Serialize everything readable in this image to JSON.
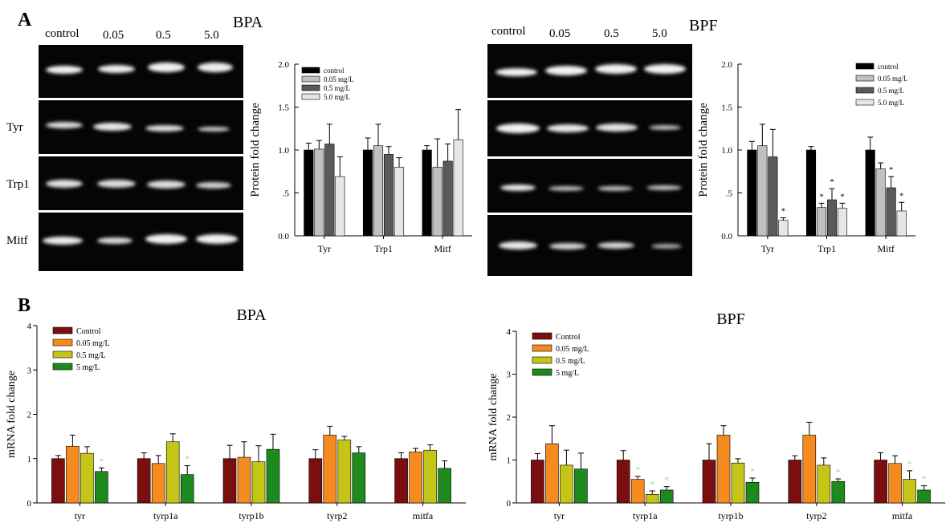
{
  "panel_labels": [
    "A",
    "B"
  ],
  "blots": [
    {
      "title": "BPA",
      "lanes": [
        "control",
        "0.05",
        "0.5",
        "5.0"
      ],
      "rows": [
        "",
        "Tyr",
        "Trp1",
        "Mitf"
      ]
    },
    {
      "title": "BPF",
      "lanes": [
        "control",
        "0.05",
        "0.5",
        "5.0"
      ],
      "rows": [
        "",
        "",
        "",
        ""
      ]
    }
  ],
  "chart_data": [
    {
      "type": "bar",
      "panel": "A",
      "title": "",
      "xlabel": "",
      "ylabel": "Protein fold change",
      "ylim": [
        0,
        2
      ],
      "yticks": [
        "0.0",
        ".5",
        "1.0",
        "1.5",
        "2.0"
      ],
      "categories": [
        "Tyr",
        "Trp1",
        "Mitf"
      ],
      "legend_position": "top-left",
      "series": [
        {
          "name": "control",
          "color": "#000000",
          "values": [
            1.0,
            1.0,
            1.0
          ],
          "errors": [
            0.08,
            0.14,
            0.05
          ]
        },
        {
          "name": "0.05 mg/L",
          "color": "#c0c0c0",
          "values": [
            1.01,
            1.05,
            0.8
          ],
          "errors": [
            0.1,
            0.25,
            0.33
          ]
        },
        {
          "name": "0.5 mg/L",
          "color": "#5a5a5a",
          "values": [
            1.07,
            0.95,
            0.87
          ],
          "errors": [
            0.23,
            0.09,
            0.2
          ]
        },
        {
          "name": "5.0 mg/L",
          "color": "#e6e6e6",
          "values": [
            0.69,
            0.8,
            1.12
          ],
          "errors": [
            0.23,
            0.11,
            0.35
          ]
        }
      ],
      "significance": []
    },
    {
      "type": "bar",
      "panel": "A",
      "title": "",
      "xlabel": "",
      "ylabel": "Protein fold change",
      "ylim": [
        0,
        2
      ],
      "yticks": [
        "0.0",
        ".5",
        "1.0",
        "1.5",
        "2.0"
      ],
      "categories": [
        "Tyr",
        "Trp1",
        "Mitf"
      ],
      "legend_position": "top-right",
      "series": [
        {
          "name": "control",
          "color": "#000000",
          "values": [
            1.0,
            1.0,
            1.0
          ],
          "errors": [
            0.1,
            0.04,
            0.15
          ]
        },
        {
          "name": "0.05 mg/L",
          "color": "#c0c0c0",
          "values": [
            1.05,
            0.33,
            0.78
          ],
          "errors": [
            0.25,
            0.05,
            0.07
          ]
        },
        {
          "name": "0.5 mg/L",
          "color": "#5a5a5a",
          "values": [
            0.92,
            0.42,
            0.56
          ],
          "errors": [
            0.32,
            0.13,
            0.13
          ]
        },
        {
          "name": "5.0 mg/L",
          "color": "#e6e6e6",
          "values": [
            0.18,
            0.32,
            0.29
          ],
          "errors": [
            0.03,
            0.06,
            0.1
          ]
        }
      ],
      "significance": [
        [
          0,
          3
        ],
        [
          1,
          1
        ],
        [
          1,
          2
        ],
        [
          1,
          3
        ],
        [
          2,
          2
        ],
        [
          2,
          3
        ]
      ]
    },
    {
      "type": "bar",
      "panel": "B",
      "title": "BPA",
      "xlabel": "",
      "ylabel": "mRNA fold change",
      "ylim": [
        0,
        4
      ],
      "yticks": [
        "0",
        "1",
        "2",
        "3",
        "4"
      ],
      "categories": [
        "tyr",
        "tyrp1a",
        "tyrp1b",
        "tyrp2",
        "mitfa"
      ],
      "legend_position": "top-left",
      "series": [
        {
          "name": "Control",
          "color": "#7b0f0f",
          "values": [
            1.0,
            1.0,
            1.0,
            1.0,
            1.0
          ],
          "errors": [
            0.07,
            0.13,
            0.3,
            0.2,
            0.13
          ]
        },
        {
          "name": "0.05 mg/L",
          "color": "#f58a1f",
          "values": [
            1.28,
            0.89,
            1.03,
            1.53,
            1.15
          ],
          "errors": [
            0.25,
            0.18,
            0.35,
            0.2,
            0.08
          ]
        },
        {
          "name": "0.5 mg/L",
          "color": "#c5c518",
          "values": [
            1.12,
            1.38,
            0.93,
            1.42,
            1.19
          ],
          "errors": [
            0.15,
            0.18,
            0.36,
            0.08,
            0.12
          ]
        },
        {
          "name": "5 mg/L",
          "color": "#1e8a1e",
          "values": [
            0.71,
            0.64,
            1.21,
            1.13,
            0.78
          ],
          "errors": [
            0.08,
            0.2,
            0.34,
            0.14,
            0.17
          ]
        }
      ],
      "significance": [
        [
          0,
          3
        ],
        [
          1,
          3
        ]
      ]
    },
    {
      "type": "bar",
      "panel": "B",
      "title": "BPF",
      "xlabel": "",
      "ylabel": "mRNA fold change",
      "ylim": [
        0,
        4
      ],
      "yticks": [
        "0",
        "1",
        "2",
        "3",
        "4"
      ],
      "categories": [
        "tyr",
        "tyrp1a",
        "tyrp1b",
        "tyrp2",
        "mitfa"
      ],
      "legend_position": "top-left",
      "series": [
        {
          "name": "Control",
          "color": "#7b0f0f",
          "values": [
            1.0,
            1.0,
            1.0,
            1.0,
            1.0
          ],
          "errors": [
            0.15,
            0.22,
            0.38,
            0.1,
            0.17
          ]
        },
        {
          "name": "0.05 mg/L",
          "color": "#f58a1f",
          "values": [
            1.38,
            0.55,
            1.58,
            1.58,
            0.92
          ],
          "errors": [
            0.42,
            0.07,
            0.22,
            0.3,
            0.18
          ]
        },
        {
          "name": "0.5 mg/L",
          "color": "#c5c518",
          "values": [
            0.88,
            0.2,
            0.93,
            0.88,
            0.55
          ],
          "errors": [
            0.35,
            0.08,
            0.1,
            0.17,
            0.2
          ]
        },
        {
          "name": "5 mg/L",
          "color": "#1e8a1e",
          "values": [
            0.79,
            0.3,
            0.48,
            0.5,
            0.3
          ],
          "errors": [
            0.37,
            0.08,
            0.1,
            0.06,
            0.1
          ]
        }
      ],
      "significance": [
        [
          1,
          1
        ],
        [
          1,
          2
        ],
        [
          1,
          3
        ],
        [
          2,
          3
        ],
        [
          3,
          3
        ],
        [
          4,
          2
        ],
        [
          4,
          3
        ]
      ]
    }
  ]
}
